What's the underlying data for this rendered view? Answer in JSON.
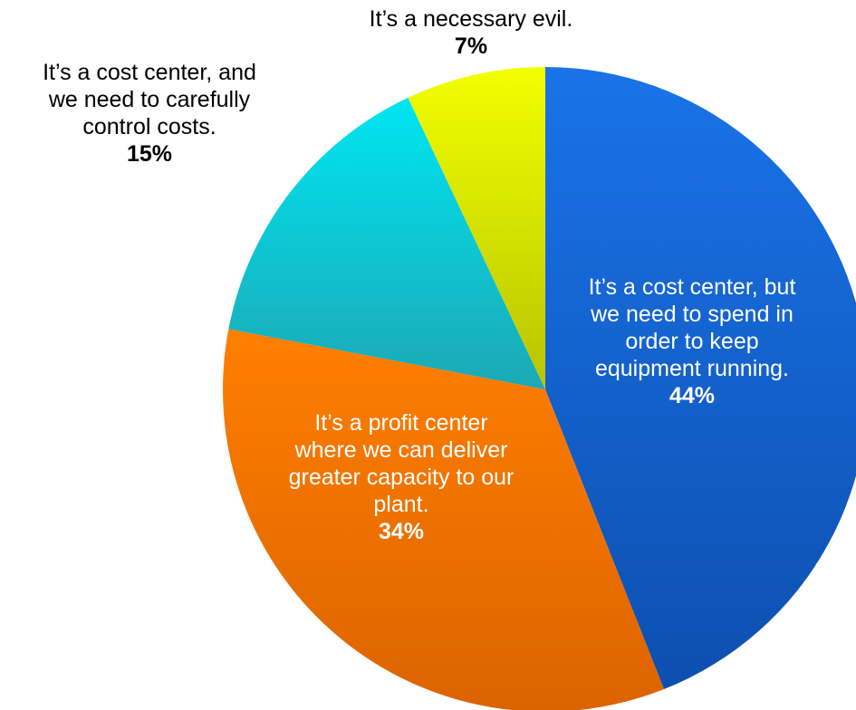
{
  "chart_data": {
    "type": "pie",
    "slices": [
      {
        "label": "It’s a cost center, but\nwe need to spend in\norder to keep\nequipment running.",
        "value": 44,
        "value_label": "44%",
        "color": "#1565d8",
        "color_light": "#1a73e8",
        "color_dark": "#0d4fb0"
      },
      {
        "label": "It’s a profit center\nwhere we can deliver\ngreater capacity to our\nplant.",
        "value": 34,
        "value_label": "34%",
        "color": "#f07000",
        "color_light": "#ff7f00",
        "color_dark": "#dc6300"
      },
      {
        "label": "It’s a cost center, and\nwe need to carefully\ncontrol costs.",
        "value": 15,
        "value_label": "15%",
        "color": "#0bc6d8",
        "color_light": "#00e5f2",
        "color_dark": "#1ca8b4"
      },
      {
        "label": "It’s a necessary evil.",
        "value": 7,
        "value_label": "7%",
        "color": "#d6e400",
        "color_light": "#f2ff00",
        "color_dark": "#b8c400"
      }
    ]
  }
}
